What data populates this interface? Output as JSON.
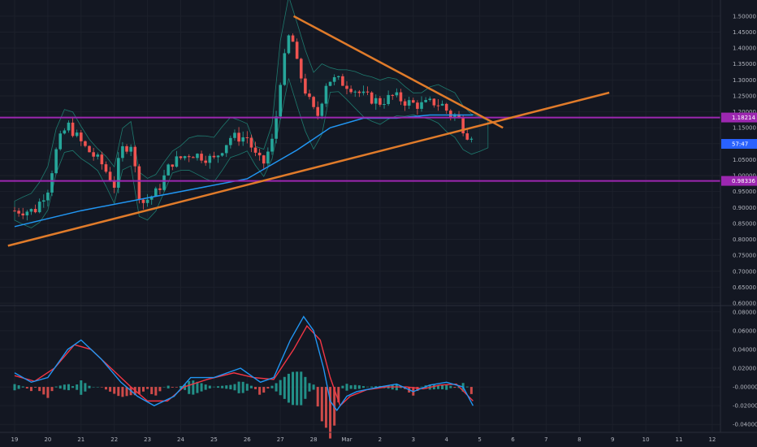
{
  "chart_data": [
    {
      "type": "candlestick",
      "panel": "price",
      "title": "",
      "ylim": [
        0.6,
        1.52
      ],
      "y_ticks": [
        "1.50000",
        "1.45000",
        "1.40000",
        "1.35000",
        "1.30000",
        "1.25000",
        "1.20000",
        "1.15000",
        "1.10000",
        "1.05000",
        "1.00000",
        "0.95000",
        "0.90000",
        "0.85000",
        "0.80000",
        "0.75000",
        "0.70000",
        "0.65000",
        "0.60000"
      ],
      "y_tick_values": [
        1.5,
        1.45,
        1.4,
        1.35,
        1.3,
        1.25,
        1.2,
        1.15,
        1.1,
        1.05,
        1.0,
        0.95,
        0.9,
        0.85,
        0.8,
        0.75,
        0.7,
        0.65,
        0.6
      ],
      "x_ticks": [
        "19",
        "20",
        "21",
        "22",
        "23",
        "24",
        "25",
        "26",
        "27",
        "28",
        "Mar",
        "2",
        "3",
        "4",
        "5",
        "6",
        "7",
        "8",
        "9",
        "10",
        "11",
        "12"
      ],
      "x_tick_days": [
        0,
        1,
        2,
        3,
        4,
        5,
        6,
        7,
        8,
        9,
        10,
        11,
        12,
        13,
        14,
        15,
        16,
        17,
        18,
        19,
        20,
        21
      ],
      "price_path": [
        [
          0,
          0.89
        ],
        [
          0.6,
          0.89
        ],
        [
          1,
          0.96
        ],
        [
          1.3,
          1.1
        ],
        [
          1.6,
          1.16
        ],
        [
          2.1,
          1.09
        ],
        [
          2.6,
          1.04
        ],
        [
          3,
          0.97
        ],
        [
          3.2,
          1.08
        ],
        [
          3.5,
          1.1
        ],
        [
          3.8,
          0.91
        ],
        [
          4.3,
          0.95
        ],
        [
          4.7,
          1.04
        ],
        [
          5.3,
          1.07
        ],
        [
          6,
          1.05
        ],
        [
          6.5,
          1.12
        ],
        [
          7,
          1.12
        ],
        [
          7.3,
          1.05
        ],
        [
          7.5,
          1.04
        ],
        [
          7.8,
          1.12
        ],
        [
          8,
          1.3
        ],
        [
          8.3,
          1.46
        ],
        [
          8.5,
          1.35
        ],
        [
          8.8,
          1.25
        ],
        [
          9.1,
          1.18
        ],
        [
          9.4,
          1.3
        ],
        [
          9.7,
          1.3
        ],
        [
          10.1,
          1.28
        ],
        [
          10.5,
          1.25
        ],
        [
          11,
          1.23
        ],
        [
          11.4,
          1.25
        ],
        [
          11.8,
          1.23
        ],
        [
          12.2,
          1.22
        ],
        [
          12.6,
          1.23
        ],
        [
          12.9,
          1.22
        ],
        [
          13.1,
          1.19
        ],
        [
          13.3,
          1.19
        ],
        [
          13.6,
          1.13
        ],
        [
          13.8,
          1.13
        ]
      ],
      "levels": [
        {
          "value": 1.18214,
          "label": "1.18214",
          "color": "#9c27b0"
        },
        {
          "value": 0.98336,
          "label": "0.98336",
          "color": "#9c27b0"
        }
      ],
      "last_price_tag": "57:47",
      "trend_lines": [
        {
          "from": [
            8.4,
            1.5
          ],
          "to": [
            14.7,
            1.15
          ],
          "color": "#e07b2a"
        },
        {
          "from": [
            -0.2,
            0.78
          ],
          "to": [
            17.9,
            1.26
          ],
          "color": "#e07b2a"
        }
      ],
      "moving_average": {
        "color": "#2196f3",
        "points": [
          [
            0,
            0.84
          ],
          [
            2,
            0.89
          ],
          [
            4,
            0.93
          ],
          [
            5.5,
            0.96
          ],
          [
            7,
            0.99
          ],
          [
            8.5,
            1.08
          ],
          [
            9.5,
            1.15
          ],
          [
            10.5,
            1.18
          ],
          [
            11.5,
            1.18
          ],
          [
            12.5,
            1.19
          ],
          [
            13.5,
            1.19
          ],
          [
            13.8,
            1.19
          ]
        ]
      }
    },
    {
      "type": "oscillator",
      "panel": "macd",
      "ylim": [
        -0.045,
        0.085
      ],
      "y_ticks": [
        "0.08000",
        "0.06000",
        "0.04000",
        "0.02000",
        "-0.00000",
        "-0.02000",
        "-0.04000"
      ],
      "y_tick_values": [
        0.08,
        0.06,
        0.04,
        0.02,
        0.0,
        -0.02,
        -0.04
      ],
      "macd_line": {
        "color": "#2196f3",
        "points": [
          [
            0,
            0.015
          ],
          [
            0.5,
            0.005
          ],
          [
            1,
            0.01
          ],
          [
            1.6,
            0.04
          ],
          [
            2,
            0.05
          ],
          [
            2.6,
            0.03
          ],
          [
            3.2,
            0.005
          ],
          [
            3.7,
            -0.01
          ],
          [
            4.2,
            -0.02
          ],
          [
            4.8,
            -0.01
          ],
          [
            5.3,
            0.01
          ],
          [
            6,
            0.01
          ],
          [
            6.8,
            0.02
          ],
          [
            7.4,
            0.005
          ],
          [
            7.8,
            0.01
          ],
          [
            8.3,
            0.05
          ],
          [
            8.7,
            0.075
          ],
          [
            9,
            0.06
          ],
          [
            9.3,
            0.02
          ],
          [
            9.5,
            -0.015
          ],
          [
            9.7,
            -0.025
          ],
          [
            10,
            -0.01
          ],
          [
            10.3,
            -0.005
          ],
          [
            11,
            0.0
          ],
          [
            11.5,
            0.003
          ],
          [
            12,
            -0.005
          ],
          [
            12.5,
            0.002
          ],
          [
            13,
            0.005
          ],
          [
            13.5,
            0.0
          ],
          [
            13.8,
            -0.02
          ]
        ]
      },
      "signal_line": {
        "color": "#f23645",
        "points": [
          [
            0,
            0.012
          ],
          [
            0.6,
            0.006
          ],
          [
            1.2,
            0.02
          ],
          [
            1.8,
            0.045
          ],
          [
            2.3,
            0.04
          ],
          [
            2.9,
            0.02
          ],
          [
            3.5,
            0.0
          ],
          [
            4,
            -0.015
          ],
          [
            4.6,
            -0.015
          ],
          [
            5.1,
            0.0
          ],
          [
            5.8,
            0.008
          ],
          [
            6.6,
            0.015
          ],
          [
            7.2,
            0.01
          ],
          [
            7.8,
            0.008
          ],
          [
            8.4,
            0.04
          ],
          [
            8.8,
            0.065
          ],
          [
            9.2,
            0.05
          ],
          [
            9.5,
            0.01
          ],
          [
            9.8,
            -0.02
          ],
          [
            10.1,
            -0.01
          ],
          [
            10.6,
            -0.003
          ],
          [
            11.2,
            0.0
          ],
          [
            11.8,
            0.0
          ],
          [
            12.3,
            -0.002
          ],
          [
            12.8,
            0.002
          ],
          [
            13.3,
            0.003
          ],
          [
            13.8,
            -0.015
          ]
        ]
      }
    }
  ]
}
